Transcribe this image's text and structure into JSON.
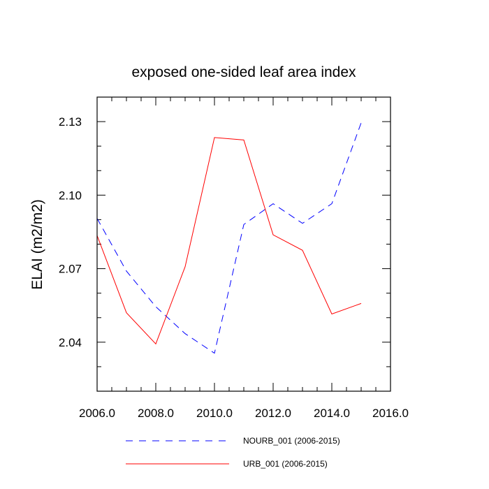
{
  "chart_data": {
    "type": "line",
    "title": "exposed one-sided leaf area index",
    "xlabel": "",
    "ylabel": "ELAI  (m2/m2)",
    "xlim": [
      2006,
      2016
    ],
    "ylim": [
      2.02,
      2.14
    ],
    "x_ticks": [
      2006,
      2008,
      2010,
      2012,
      2014,
      2016
    ],
    "x_tick_labels": [
      "2006.0",
      "2008.0",
      "2010.0",
      "2012.0",
      "2014.0",
      "2016.0"
    ],
    "y_ticks": [
      2.04,
      2.07,
      2.1,
      2.13
    ],
    "y_tick_labels": [
      "2.04",
      "2.07",
      "2.10",
      "2.13"
    ],
    "legend_position": "bottom",
    "series": [
      {
        "name": "NOURB_001 (2006-2015)",
        "color": "#0000ff",
        "style": "dashed",
        "x": [
          2006,
          2007,
          2008,
          2009,
          2010,
          2011,
          2012,
          2013,
          2014,
          2015
        ],
        "values": [
          2.0905,
          2.069,
          2.0545,
          2.0435,
          2.0355,
          2.088,
          2.0965,
          2.0885,
          2.0965,
          2.1295
        ]
      },
      {
        "name": "URB_001 (2006-2015)",
        "color": "#ff0000",
        "style": "solid",
        "x": [
          2006,
          2007,
          2008,
          2009,
          2010,
          2011,
          2012,
          2013,
          2014,
          2015
        ],
        "values": [
          2.0835,
          2.052,
          2.0393,
          2.0708,
          2.1235,
          2.1225,
          2.0838,
          2.0775,
          2.0515,
          2.0558
        ]
      }
    ]
  }
}
